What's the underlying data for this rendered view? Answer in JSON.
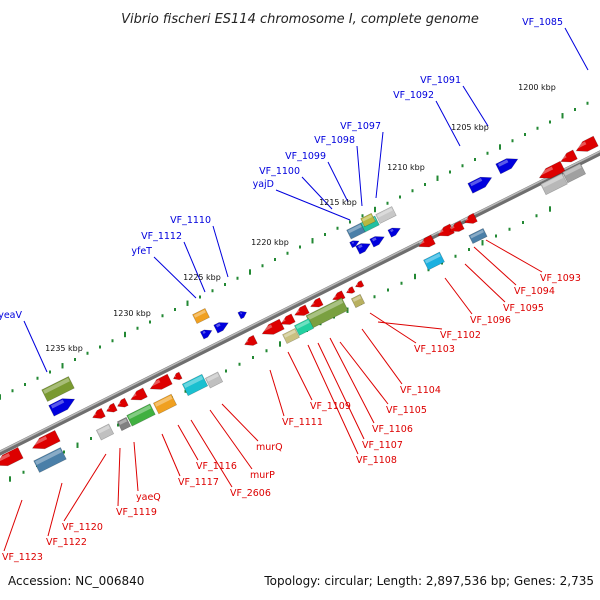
{
  "title": "Vibrio fischeri ES114 chromosome I, complete genome",
  "footer": {
    "accession": "Accession: NC_006840",
    "summary": "Topology: circular; Length: 2,897,536 bp; Genes: 2,735"
  },
  "colors": {
    "forward_strand": "#0000dd",
    "reverse_strand": "#dd0000",
    "backbone": "#888888",
    "tick": "#228833"
  },
  "kbp_labels": [
    "1200 kbp",
    "1205 kbp",
    "1210 kbp",
    "1215 kbp",
    "1220 kbp",
    "1225 kbp",
    "1230 kbp",
    "1235 kbp"
  ],
  "forward_gene_labels": [
    "VF_1085",
    "VF_1091",
    "VF_1092",
    "VF_1097",
    "VF_1098",
    "VF_1099",
    "VF_1100",
    "yajD",
    "VF_1110",
    "VF_1112",
    "yfeT",
    "yeaV"
  ],
  "reverse_gene_labels": [
    "VF_1093",
    "VF_1094",
    "VF_1095",
    "VF_1096",
    "VF_1102",
    "VF_1103",
    "VF_1104",
    "VF_1105",
    "VF_1106",
    "VF_1107",
    "VF_1108",
    "VF_1109",
    "VF_1111",
    "murQ",
    "murP",
    "VF_2606",
    "VF_1116",
    "VF_1117",
    "yaeQ",
    "VF_1119",
    "VF_1120",
    "VF_1122",
    "VF_1123"
  ]
}
